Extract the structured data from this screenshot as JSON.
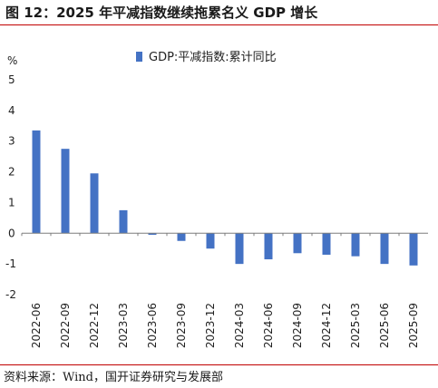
{
  "title": "图 12：2025 年平减指数继续拖累名义 GDP 增长",
  "source": "资料来源：Wind，国开证券研究与发展部",
  "chart_data": {
    "type": "bar",
    "ylabel": "%",
    "ylim": [
      -2,
      5
    ],
    "yticks": [
      5,
      4,
      3,
      2,
      1,
      0,
      -1,
      -2
    ],
    "bar_color": "#4472c4",
    "legend_position": "top",
    "categories": [
      "2022-06",
      "2022-09",
      "2022-12",
      "2023-03",
      "2023-06",
      "2023-09",
      "2023-12",
      "2024-03",
      "2024-06",
      "2024-09",
      "2024-12",
      "2025-03",
      "2025-06",
      "2025-09"
    ],
    "series": [
      {
        "name": "GDP:平减指数:累计同比",
        "values": [
          3.35,
          2.75,
          1.95,
          0.75,
          -0.05,
          -0.25,
          -0.5,
          -1.0,
          -0.85,
          -0.65,
          -0.7,
          -0.75,
          -1.0,
          -1.05
        ]
      }
    ]
  }
}
